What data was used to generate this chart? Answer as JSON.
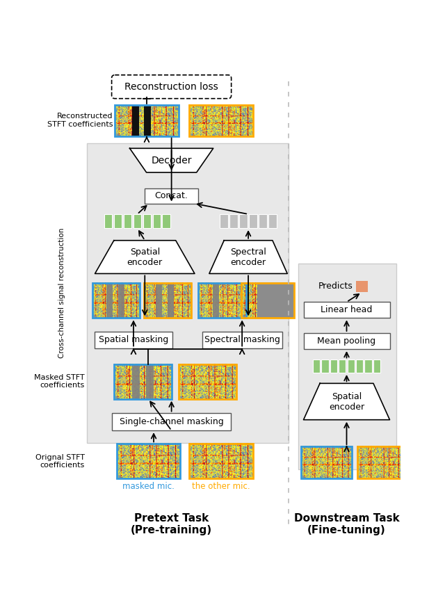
{
  "bg_color": "#f0f0f0",
  "white": "#ffffff",
  "black": "#000000",
  "green_token": "#90c978",
  "gray_token": "#c0c0c0",
  "orange_token": "#e8956d",
  "blue_border": "#3399dd",
  "orange_border": "#ffaa00",
  "pretext_label": "Pretext Task\n(Pre-training)",
  "downstream_label": "Downstream Task\n(Fine-tuning)",
  "recon_loss_text": "Reconstruction loss",
  "reconstructed_label": "Reconstructed\nSTFT coefficients",
  "masked_stft_label": "Masked STFT\ncoefficients",
  "original_stft_label": "Orignal STFT\ncoefficients",
  "masked_mic_label": "masked mic.",
  "other_mic_label": "the other mic.",
  "cross_channel_label": "Cross-channel signal reconstruction",
  "spatial_enc_label": "Spatial\nencoder",
  "spectral_enc_label": "Spectral\nencoder",
  "spatial_mask_label": "Spatial masking",
  "spectral_mask_label": "Spectral masking",
  "single_mask_label": "Single-channel masking",
  "decoder_label": "Decoder",
  "concat_label": "Concat.",
  "predicts_label": "Predicts",
  "linear_head_label": "Linear head",
  "mean_pooling_label": "Mean pooling",
  "spatial_enc2_label": "Spatial\nencoder"
}
